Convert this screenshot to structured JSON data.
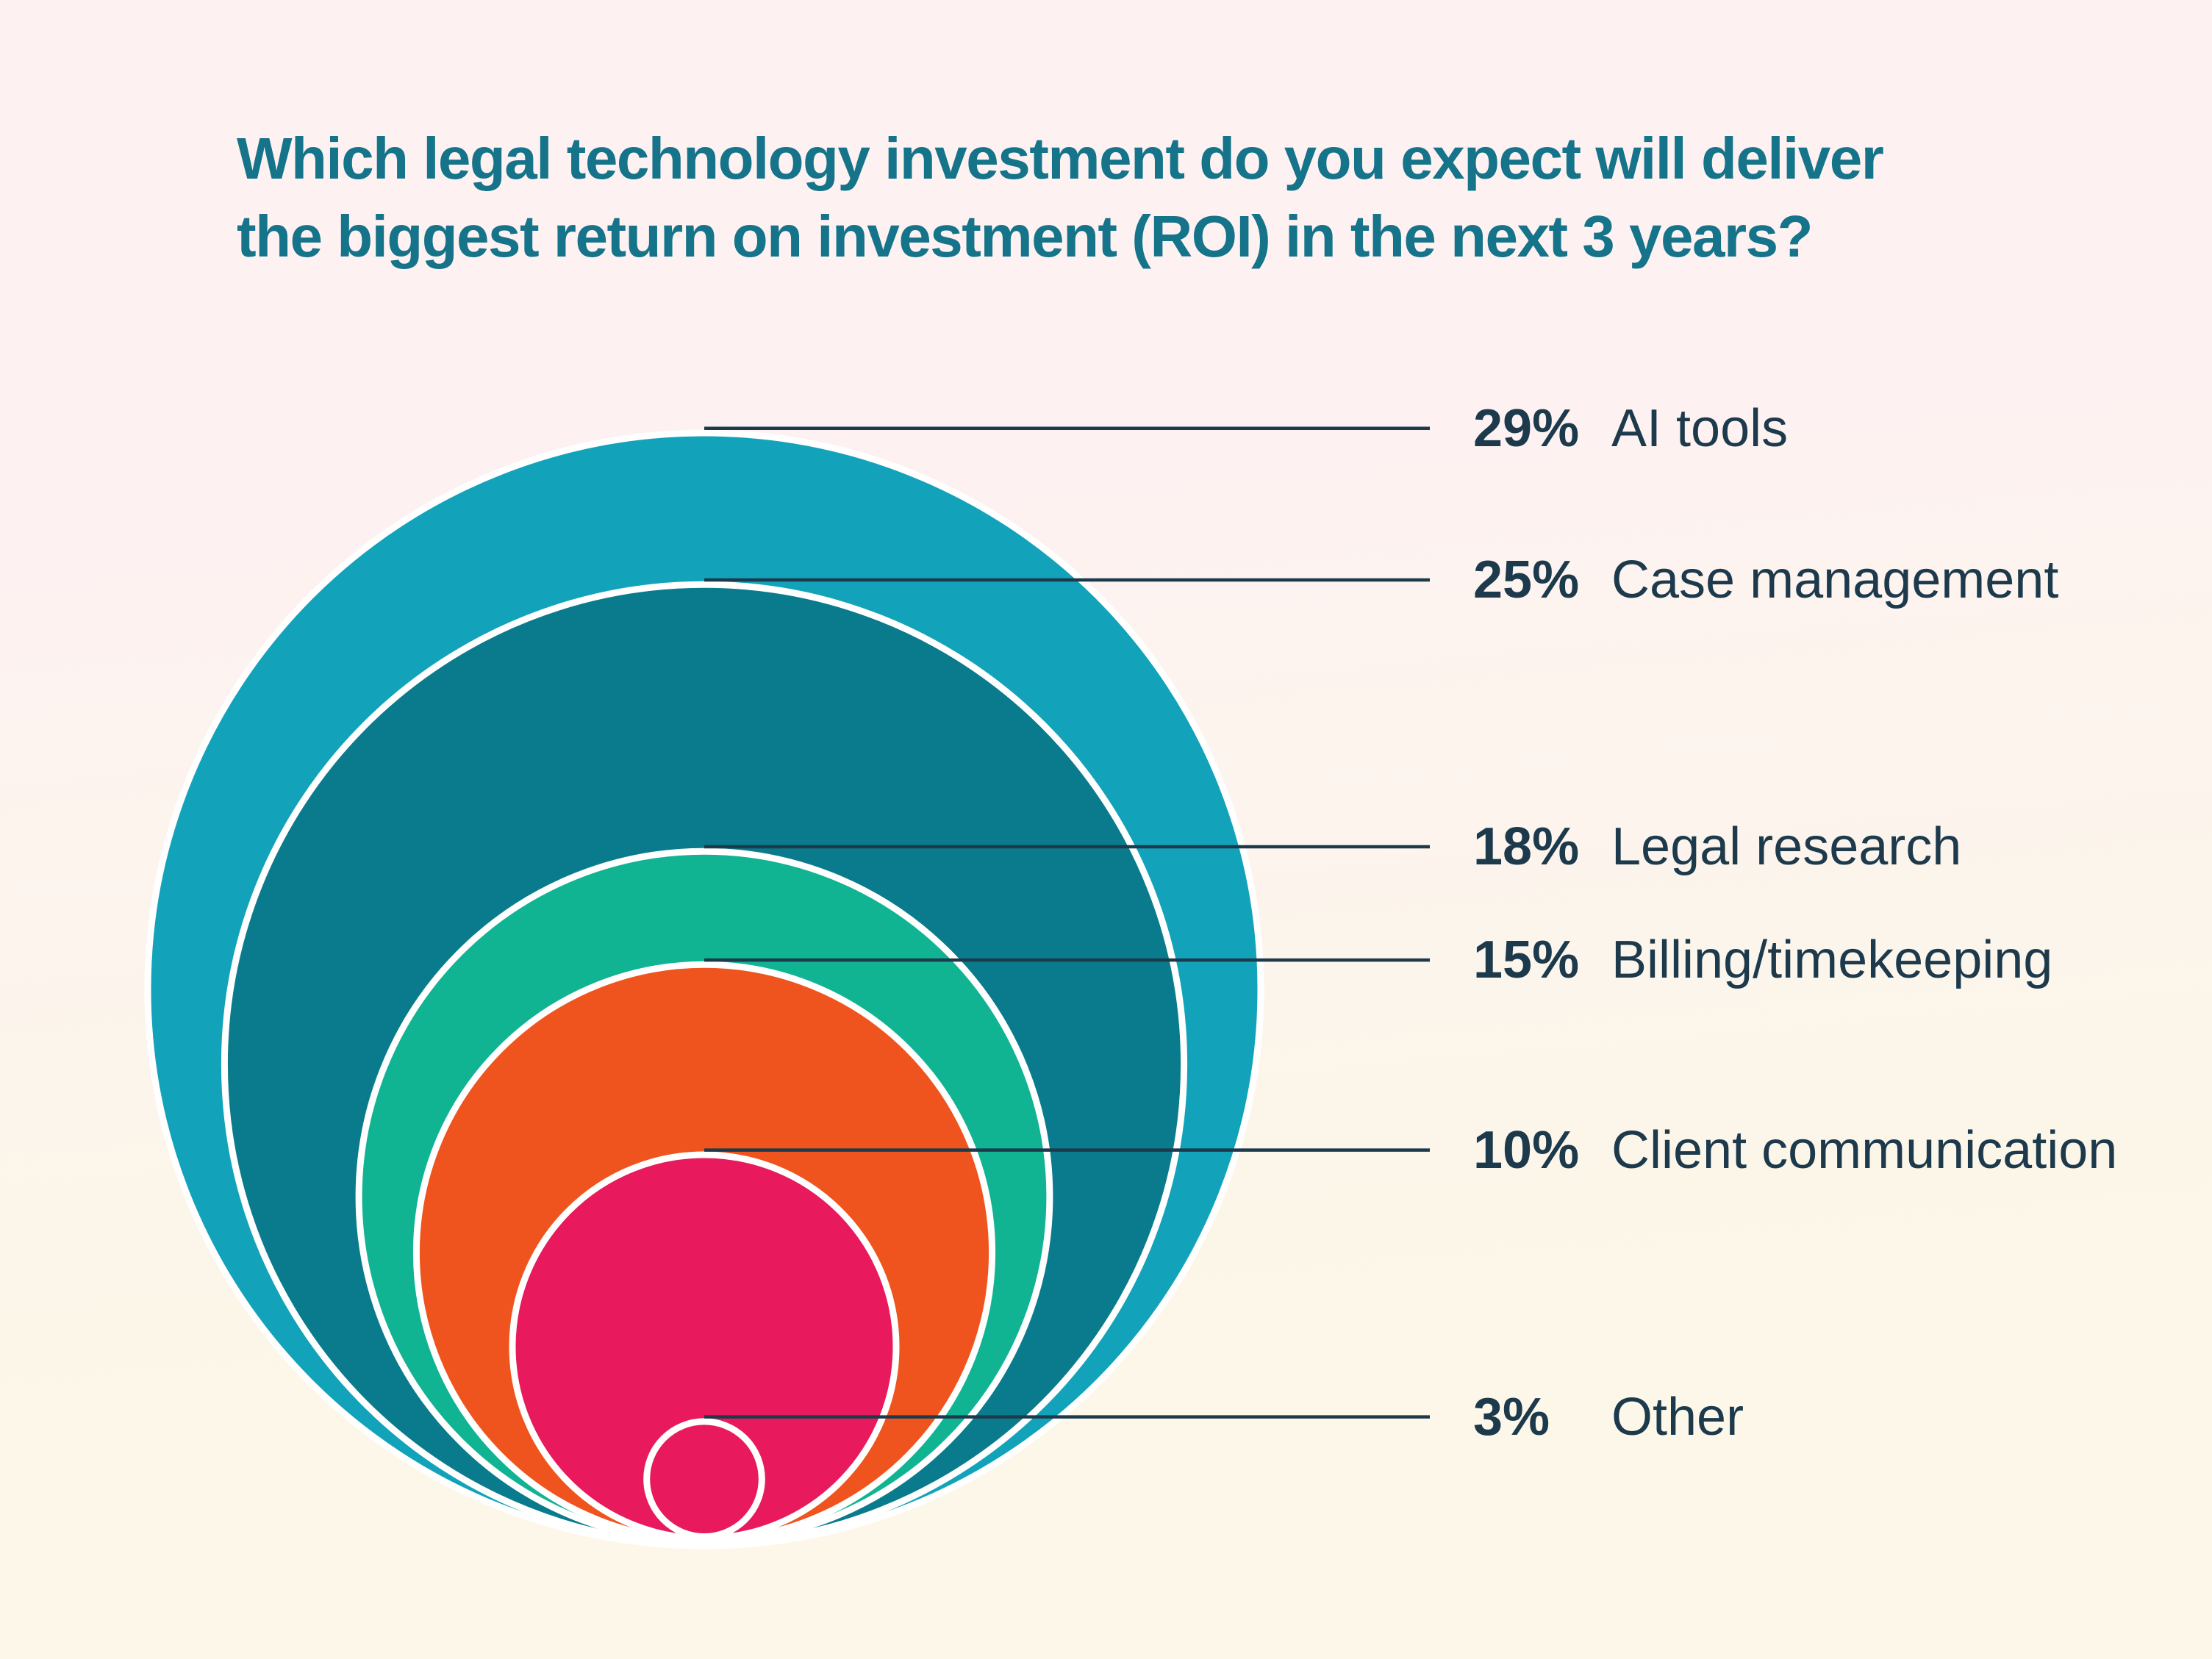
{
  "title_lines": [
    "Which legal technology investment do you expect will deliver",
    "the biggest return on investment (ROI) in the next 3 years?"
  ],
  "colors": {
    "background_top": "#fdf2f1",
    "background_bottom": "#fcf7e8",
    "title_color": "#15738a",
    "text_color": "#1d3a4d",
    "leader_line": "#1d3a4d",
    "circle_separator": "#ffffff"
  },
  "chart_data": {
    "type": "nested-bubble",
    "title": "Which legal technology investment do you expect will deliver the biggest return on investment (ROI) in the next 3 years?",
    "unit": "%",
    "max_value": 29,
    "categories": [
      "AI tools",
      "Case management",
      "Legal research",
      "Billing/timekeeping",
      "Client communication",
      "Other"
    ],
    "values": [
      29,
      25,
      18,
      15,
      10,
      3
    ],
    "items": [
      {
        "label": "AI tools",
        "value": 29,
        "pct_label": "29%",
        "color": "#12a3bb"
      },
      {
        "label": "Case management",
        "value": 25,
        "pct_label": "25%",
        "color": "#0a7b8c"
      },
      {
        "label": "Legal research",
        "value": 18,
        "pct_label": "18%",
        "color": "#10b493"
      },
      {
        "label": "Billing/timekeeping",
        "value": 15,
        "pct_label": "15%",
        "color": "#f0541e"
      },
      {
        "label": "Client communication",
        "value": 10,
        "pct_label": "10%",
        "color": "#e8195c"
      },
      {
        "label": "Other",
        "value": 3,
        "pct_label": "3%",
        "color": "#e8195c"
      }
    ],
    "layout_hints": {
      "legend_position": "right",
      "circles_bottom_aligned": true,
      "radius_proportional_to_value": true,
      "grid": false
    }
  }
}
